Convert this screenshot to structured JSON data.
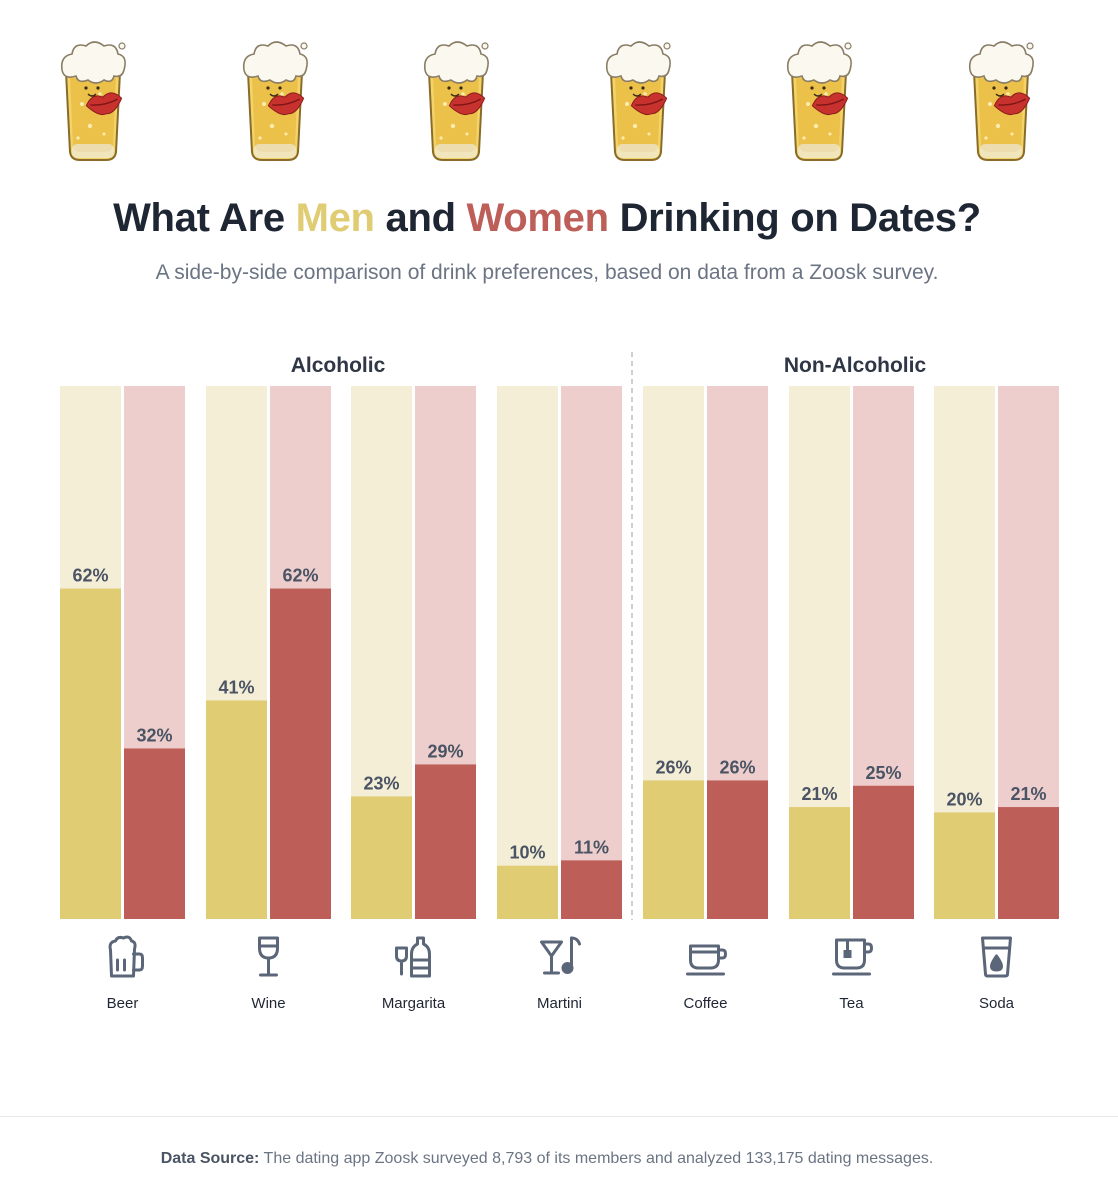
{
  "header": {
    "title_part1": "What Are ",
    "title_men": "Men",
    "title_part2": " and ",
    "title_women": "Women",
    "title_part3": " Drinking on Dates?",
    "subtitle": "A side-by-side comparison of drink preferences, based on data from a Zoosk survey."
  },
  "colors": {
    "men": "#e0cc72",
    "men_bg": "#f5eed6",
    "women": "#bd5f58",
    "women_bg": "#edcecc",
    "text_dark": "#2f3645",
    "icon": "#5b6678"
  },
  "decorations": {
    "mug_count": 6,
    "mug_icon": "beer-mug-with-kiss-icon"
  },
  "chart_data": {
    "type": "bar",
    "groups": [
      {
        "label": "Alcoholic",
        "categories": [
          "Beer",
          "Wine",
          "Margarita",
          "Martini"
        ]
      },
      {
        "label": "Non-Alcoholic",
        "categories": [
          "Coffee",
          "Tea",
          "Soda"
        ]
      }
    ],
    "categories": [
      "Beer",
      "Wine",
      "Margarita",
      "Martini",
      "Coffee",
      "Tea",
      "Soda"
    ],
    "icons": [
      "beer-icon",
      "wine-glass-icon",
      "margarita-bottle-icon",
      "martini-icon",
      "coffee-cup-icon",
      "tea-cup-icon",
      "soda-glass-icon"
    ],
    "series": [
      {
        "values": [
          62,
          41,
          23,
          10,
          26,
          21,
          20
        ]
      },
      {
        "values": [
          32,
          62,
          29,
          11,
          26,
          25,
          21
        ]
      }
    ],
    "value_suffix": "%",
    "ylim": [
      0,
      100
    ],
    "grid": false,
    "legend": "none"
  },
  "footer": {
    "label": "Data Source:",
    "text": " The dating app Zoosk surveyed 8,793 of its members and analyzed 133,175 dating messages."
  }
}
